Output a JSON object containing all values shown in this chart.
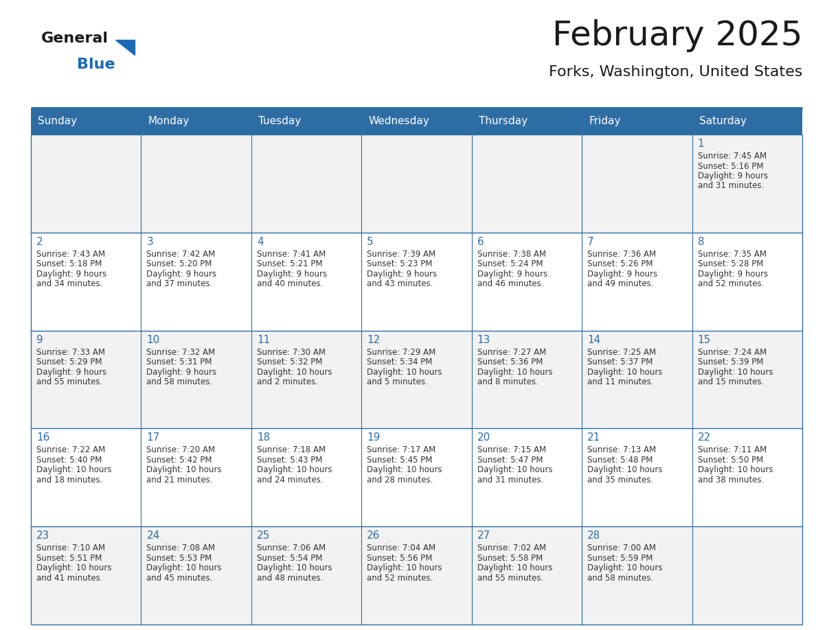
{
  "title": "February 2025",
  "subtitle": "Forks, Washington, United States",
  "header_bg": "#2E6DA4",
  "header_text_color": "#FFFFFF",
  "cell_bg_odd": "#F2F2F2",
  "cell_bg_even": "#FFFFFF",
  "day_number_color": "#2E6DA4",
  "info_text_color": "#333333",
  "border_color": "#2E6DA4",
  "separator_color": "#2E6DA4",
  "days_of_week": [
    "Sunday",
    "Monday",
    "Tuesday",
    "Wednesday",
    "Thursday",
    "Friday",
    "Saturday"
  ],
  "weeks": [
    [
      {
        "day": null,
        "info": ""
      },
      {
        "day": null,
        "info": ""
      },
      {
        "day": null,
        "info": ""
      },
      {
        "day": null,
        "info": ""
      },
      {
        "day": null,
        "info": ""
      },
      {
        "day": null,
        "info": ""
      },
      {
        "day": 1,
        "info": "Sunrise: 7:45 AM\nSunset: 5:16 PM\nDaylight: 9 hours\nand 31 minutes."
      }
    ],
    [
      {
        "day": 2,
        "info": "Sunrise: 7:43 AM\nSunset: 5:18 PM\nDaylight: 9 hours\nand 34 minutes."
      },
      {
        "day": 3,
        "info": "Sunrise: 7:42 AM\nSunset: 5:20 PM\nDaylight: 9 hours\nand 37 minutes."
      },
      {
        "day": 4,
        "info": "Sunrise: 7:41 AM\nSunset: 5:21 PM\nDaylight: 9 hours\nand 40 minutes."
      },
      {
        "day": 5,
        "info": "Sunrise: 7:39 AM\nSunset: 5:23 PM\nDaylight: 9 hours\nand 43 minutes."
      },
      {
        "day": 6,
        "info": "Sunrise: 7:38 AM\nSunset: 5:24 PM\nDaylight: 9 hours\nand 46 minutes."
      },
      {
        "day": 7,
        "info": "Sunrise: 7:36 AM\nSunset: 5:26 PM\nDaylight: 9 hours\nand 49 minutes."
      },
      {
        "day": 8,
        "info": "Sunrise: 7:35 AM\nSunset: 5:28 PM\nDaylight: 9 hours\nand 52 minutes."
      }
    ],
    [
      {
        "day": 9,
        "info": "Sunrise: 7:33 AM\nSunset: 5:29 PM\nDaylight: 9 hours\nand 55 minutes."
      },
      {
        "day": 10,
        "info": "Sunrise: 7:32 AM\nSunset: 5:31 PM\nDaylight: 9 hours\nand 58 minutes."
      },
      {
        "day": 11,
        "info": "Sunrise: 7:30 AM\nSunset: 5:32 PM\nDaylight: 10 hours\nand 2 minutes."
      },
      {
        "day": 12,
        "info": "Sunrise: 7:29 AM\nSunset: 5:34 PM\nDaylight: 10 hours\nand 5 minutes."
      },
      {
        "day": 13,
        "info": "Sunrise: 7:27 AM\nSunset: 5:36 PM\nDaylight: 10 hours\nand 8 minutes."
      },
      {
        "day": 14,
        "info": "Sunrise: 7:25 AM\nSunset: 5:37 PM\nDaylight: 10 hours\nand 11 minutes."
      },
      {
        "day": 15,
        "info": "Sunrise: 7:24 AM\nSunset: 5:39 PM\nDaylight: 10 hours\nand 15 minutes."
      }
    ],
    [
      {
        "day": 16,
        "info": "Sunrise: 7:22 AM\nSunset: 5:40 PM\nDaylight: 10 hours\nand 18 minutes."
      },
      {
        "day": 17,
        "info": "Sunrise: 7:20 AM\nSunset: 5:42 PM\nDaylight: 10 hours\nand 21 minutes."
      },
      {
        "day": 18,
        "info": "Sunrise: 7:18 AM\nSunset: 5:43 PM\nDaylight: 10 hours\nand 24 minutes."
      },
      {
        "day": 19,
        "info": "Sunrise: 7:17 AM\nSunset: 5:45 PM\nDaylight: 10 hours\nand 28 minutes."
      },
      {
        "day": 20,
        "info": "Sunrise: 7:15 AM\nSunset: 5:47 PM\nDaylight: 10 hours\nand 31 minutes."
      },
      {
        "day": 21,
        "info": "Sunrise: 7:13 AM\nSunset: 5:48 PM\nDaylight: 10 hours\nand 35 minutes."
      },
      {
        "day": 22,
        "info": "Sunrise: 7:11 AM\nSunset: 5:50 PM\nDaylight: 10 hours\nand 38 minutes."
      }
    ],
    [
      {
        "day": 23,
        "info": "Sunrise: 7:10 AM\nSunset: 5:51 PM\nDaylight: 10 hours\nand 41 minutes."
      },
      {
        "day": 24,
        "info": "Sunrise: 7:08 AM\nSunset: 5:53 PM\nDaylight: 10 hours\nand 45 minutes."
      },
      {
        "day": 25,
        "info": "Sunrise: 7:06 AM\nSunset: 5:54 PM\nDaylight: 10 hours\nand 48 minutes."
      },
      {
        "day": 26,
        "info": "Sunrise: 7:04 AM\nSunset: 5:56 PM\nDaylight: 10 hours\nand 52 minutes."
      },
      {
        "day": 27,
        "info": "Sunrise: 7:02 AM\nSunset: 5:58 PM\nDaylight: 10 hours\nand 55 minutes."
      },
      {
        "day": 28,
        "info": "Sunrise: 7:00 AM\nSunset: 5:59 PM\nDaylight: 10 hours\nand 58 minutes."
      },
      {
        "day": null,
        "info": ""
      }
    ]
  ],
  "logo_general_color": "#1a1a1a",
  "logo_blue_color": "#1a6bb5",
  "logo_triangle_color": "#1a6bb5",
  "fig_width": 11.88,
  "fig_height": 9.18,
  "title_fontsize": 36,
  "subtitle_fontsize": 16,
  "dow_fontsize": 11,
  "day_num_fontsize": 11,
  "info_fontsize": 8.5
}
